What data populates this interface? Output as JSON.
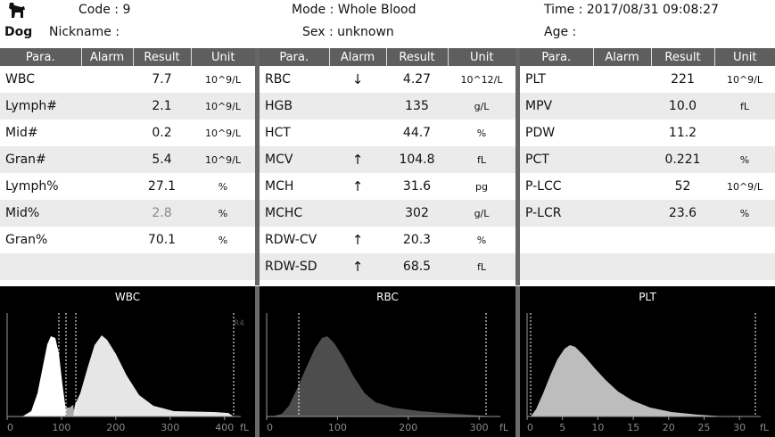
{
  "header": {
    "species": "Dog",
    "code": "Code : 9",
    "nickname": "Nickname :",
    "mode": "Mode : Whole  Blood",
    "sex": "Sex : unknown",
    "time": "Time : 2017/08/31  09:08:27",
    "age": "Age :",
    "icon": "dog-icon"
  },
  "columns": {
    "para": "Para.",
    "alarm": "Alarm",
    "result": "Result",
    "unit": "Unit"
  },
  "wbc_table": [
    {
      "para": "WBC",
      "alarm": "",
      "result": "7.7",
      "unit": "10^9/L"
    },
    {
      "para": "Lymph#",
      "alarm": "",
      "result": "2.1",
      "unit": "10^9/L"
    },
    {
      "para": "Mid#",
      "alarm": "",
      "result": "0.2",
      "unit": "10^9/L"
    },
    {
      "para": "Gran#",
      "alarm": "",
      "result": "5.4",
      "unit": "10^9/L"
    },
    {
      "para": "Lymph%",
      "alarm": "",
      "result": "27.1",
      "unit": "%"
    },
    {
      "para": "Mid%",
      "alarm": "",
      "result": "2.8",
      "unit": "%"
    },
    {
      "para": "Gran%",
      "alarm": "",
      "result": "70.1",
      "unit": "%"
    },
    {
      "para": "",
      "alarm": "",
      "result": "",
      "unit": ""
    }
  ],
  "rbc_table": [
    {
      "para": "RBC",
      "alarm": "↓",
      "result": "4.27",
      "unit": "10^12/L"
    },
    {
      "para": "HGB",
      "alarm": "",
      "result": "135",
      "unit": "g/L"
    },
    {
      "para": "HCT",
      "alarm": "",
      "result": "44.7",
      "unit": "%"
    },
    {
      "para": "MCV",
      "alarm": "↑",
      "result": "104.8",
      "unit": "fL"
    },
    {
      "para": "MCH",
      "alarm": "↑",
      "result": "31.6",
      "unit": "pg"
    },
    {
      "para": "MCHC",
      "alarm": "",
      "result": "302",
      "unit": "g/L"
    },
    {
      "para": "RDW-CV",
      "alarm": "↑",
      "result": "20.3",
      "unit": "%"
    },
    {
      "para": "RDW-SD",
      "alarm": "↑",
      "result": "68.5",
      "unit": "fL"
    }
  ],
  "plt_table": [
    {
      "para": "PLT",
      "alarm": "",
      "result": "221",
      "unit": "10^9/L"
    },
    {
      "para": "MPV",
      "alarm": "",
      "result": "10.0",
      "unit": "fL"
    },
    {
      "para": "PDW",
      "alarm": "",
      "result": "11.2",
      "unit": ""
    },
    {
      "para": "PCT",
      "alarm": "",
      "result": "0.221",
      "unit": "%"
    },
    {
      "para": "P-LCC",
      "alarm": "",
      "result": "52",
      "unit": "10^9/L"
    },
    {
      "para": "P-LCR",
      "alarm": "",
      "result": "23.6",
      "unit": "%"
    },
    {
      "para": "",
      "alarm": "",
      "result": "",
      "unit": ""
    },
    {
      "para": "",
      "alarm": "",
      "result": "",
      "unit": ""
    }
  ],
  "histograms": [
    {
      "title": "WBC",
      "ticks": [
        "0",
        "100",
        "200",
        "300",
        "400"
      ],
      "unit": "fL",
      "marker": "R4",
      "xmax": 430
    },
    {
      "title": "RBC",
      "ticks": [
        "0",
        "100",
        "200",
        "300"
      ],
      "unit": "fL",
      "xmax": 330
    },
    {
      "title": "PLT",
      "ticks": [
        "0",
        "5",
        "10",
        "15",
        "20",
        "25",
        "30"
      ],
      "unit": "fL",
      "xmax": 33
    }
  ],
  "colors": {
    "header_bar": "#5e5e5e",
    "alt_row": "#ebebeb",
    "hist_bg": "#000000"
  }
}
